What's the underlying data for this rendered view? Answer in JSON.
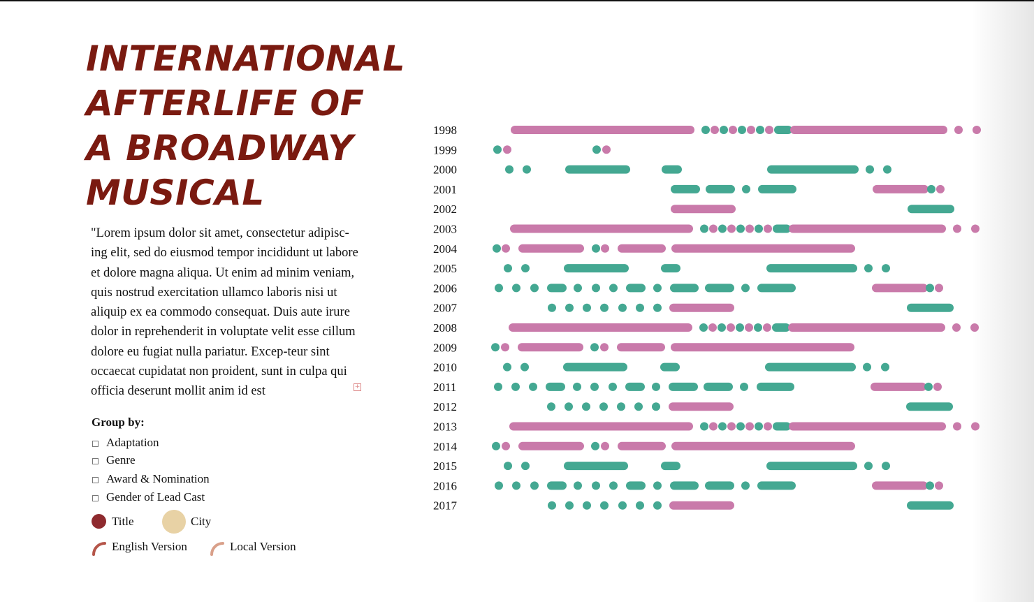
{
  "title": "INTERNATIONAL AFTERLIFE OF A BROADWAY MUSICAL",
  "description": "\"Lorem ipsum dolor sit amet, consectetur adipisc-ing elit, sed do eiusmod tempor incididunt ut labore et dolore magna aliqua. Ut enim ad minim veniam, quis nostrud exercitation ullamco laboris nisi ut aliquip ex ea commodo consequat. Duis aute irure dolor in reprehenderit in voluptate velit esse cillum dolore eu fugiat nulla pariatur. Excep-teur sint occaecat cupidatat non proident, sunt in culpa qui officia deserunt mollit anim id est",
  "expand_icon": "expand-plus-icon",
  "group_by": {
    "label": "Group by:",
    "options": [
      "Adaptation",
      "Genre",
      "Award & Nomination",
      "Gender of Lead Cast"
    ]
  },
  "legend": {
    "title": "Title",
    "city": "City",
    "english_version": "English Version",
    "local_version": "Local Version"
  },
  "colors": {
    "title_accent": "#7a1a10",
    "title_dot": "#8e2a2e",
    "city_dot": "#e8d2a5",
    "english_arc": "#b5564a",
    "local_arc": "#d9a08a",
    "pink": "#c97aaa",
    "teal": "#44a892"
  },
  "chart_data": {
    "type": "timeline",
    "years": [
      "1998",
      "1999",
      "2000",
      "2001",
      "2002",
      "2003",
      "2004",
      "2005",
      "2006",
      "2007",
      "2008",
      "2009",
      "2010",
      "2011",
      "2012",
      "2013",
      "2014",
      "2015",
      "2016",
      "2017"
    ],
    "series": [
      {
        "year": "1998",
        "segments": [
          [
            737,
            988,
            "pink"
          ],
          [
            1010,
            1010,
            "teal"
          ],
          [
            1023,
            1023,
            "pink"
          ],
          [
            1036,
            1036,
            "teal"
          ],
          [
            1049,
            1049,
            "pink"
          ],
          [
            1062,
            1062,
            "teal"
          ],
          [
            1075,
            1075,
            "pink"
          ],
          [
            1088,
            1088,
            "teal"
          ],
          [
            1101,
            1101,
            "pink"
          ],
          [
            1114,
            1128,
            "teal"
          ],
          [
            1137,
            1350,
            "pink"
          ],
          [
            1372,
            1372,
            "pink"
          ],
          [
            1398,
            1398,
            "pink"
          ]
        ]
      },
      {
        "year": "1999",
        "segments": [
          [
            712,
            712,
            "teal"
          ],
          [
            726,
            726,
            "pink"
          ],
          [
            854,
            854,
            "teal"
          ],
          [
            868,
            868,
            "pink"
          ]
        ]
      },
      {
        "year": "2000",
        "segments": [
          [
            729,
            729,
            "teal"
          ],
          [
            754,
            754,
            "teal"
          ],
          [
            815,
            896,
            "teal"
          ],
          [
            953,
            970,
            "teal"
          ],
          [
            1104,
            1223,
            "teal"
          ],
          [
            1245,
            1245,
            "teal"
          ],
          [
            1270,
            1270,
            "teal"
          ]
        ]
      },
      {
        "year": "2001",
        "segments": [
          [
            966,
            996,
            "teal"
          ],
          [
            1016,
            1046,
            "teal"
          ],
          [
            1068,
            1068,
            "teal"
          ],
          [
            1091,
            1134,
            "teal"
          ],
          [
            1255,
            1323,
            "pink"
          ],
          [
            1333,
            1333,
            "teal"
          ],
          [
            1346,
            1346,
            "pink"
          ]
        ]
      },
      {
        "year": "2002",
        "segments": [
          [
            966,
            1047,
            "pink"
          ],
          [
            1305,
            1360,
            "teal"
          ]
        ]
      },
      {
        "year": "2003",
        "segments": [
          [
            736,
            986,
            "pink"
          ],
          [
            1008,
            1008,
            "teal"
          ],
          [
            1021,
            1021,
            "pink"
          ],
          [
            1034,
            1034,
            "teal"
          ],
          [
            1047,
            1047,
            "pink"
          ],
          [
            1060,
            1060,
            "teal"
          ],
          [
            1073,
            1073,
            "pink"
          ],
          [
            1086,
            1086,
            "teal"
          ],
          [
            1099,
            1099,
            "pink"
          ],
          [
            1112,
            1126,
            "teal"
          ],
          [
            1135,
            1348,
            "pink"
          ],
          [
            1370,
            1370,
            "pink"
          ],
          [
            1396,
            1396,
            "pink"
          ]
        ]
      },
      {
        "year": "2004",
        "segments": [
          [
            711,
            711,
            "teal"
          ],
          [
            724,
            724,
            "pink"
          ],
          [
            748,
            830,
            "pink"
          ],
          [
            853,
            853,
            "teal"
          ],
          [
            866,
            866,
            "pink"
          ],
          [
            890,
            947,
            "pink"
          ],
          [
            967,
            1218,
            "pink"
          ]
        ]
      },
      {
        "year": "2005",
        "segments": [
          [
            727,
            727,
            "teal"
          ],
          [
            752,
            752,
            "teal"
          ],
          [
            813,
            894,
            "teal"
          ],
          [
            952,
            968,
            "teal"
          ],
          [
            1103,
            1221,
            "teal"
          ],
          [
            1243,
            1243,
            "teal"
          ],
          [
            1268,
            1268,
            "teal"
          ]
        ]
      },
      {
        "year": "2006",
        "segments": [
          [
            714,
            714,
            "teal"
          ],
          [
            739,
            739,
            "teal"
          ],
          [
            765,
            765,
            "teal"
          ],
          [
            789,
            805,
            "teal"
          ],
          [
            827,
            827,
            "teal"
          ],
          [
            853,
            853,
            "teal"
          ],
          [
            878,
            878,
            "teal"
          ],
          [
            902,
            918,
            "teal"
          ],
          [
            941,
            941,
            "teal"
          ],
          [
            965,
            994,
            "teal"
          ],
          [
            1015,
            1045,
            "teal"
          ],
          [
            1067,
            1067,
            "teal"
          ],
          [
            1090,
            1133,
            "teal"
          ],
          [
            1254,
            1322,
            "pink"
          ],
          [
            1331,
            1331,
            "teal"
          ],
          [
            1344,
            1344,
            "pink"
          ]
        ]
      },
      {
        "year": "2007",
        "segments": [
          [
            790,
            790,
            "teal"
          ],
          [
            815,
            815,
            "teal"
          ],
          [
            840,
            840,
            "teal"
          ],
          [
            865,
            865,
            "teal"
          ],
          [
            891,
            891,
            "teal"
          ],
          [
            916,
            916,
            "teal"
          ],
          [
            941,
            941,
            "teal"
          ],
          [
            964,
            1045,
            "pink"
          ],
          [
            1304,
            1359,
            "teal"
          ]
        ]
      },
      {
        "year": "2008",
        "segments": [
          [
            734,
            985,
            "pink"
          ],
          [
            1007,
            1007,
            "teal"
          ],
          [
            1020,
            1020,
            "pink"
          ],
          [
            1033,
            1033,
            "teal"
          ],
          [
            1046,
            1046,
            "pink"
          ],
          [
            1059,
            1059,
            "teal"
          ],
          [
            1072,
            1072,
            "pink"
          ],
          [
            1085,
            1085,
            "teal"
          ],
          [
            1098,
            1098,
            "pink"
          ],
          [
            1111,
            1125,
            "teal"
          ],
          [
            1134,
            1347,
            "pink"
          ],
          [
            1369,
            1369,
            "pink"
          ],
          [
            1395,
            1395,
            "pink"
          ]
        ]
      },
      {
        "year": "2009",
        "segments": [
          [
            709,
            709,
            "teal"
          ],
          [
            723,
            723,
            "pink"
          ],
          [
            747,
            829,
            "pink"
          ],
          [
            851,
            851,
            "teal"
          ],
          [
            865,
            865,
            "pink"
          ],
          [
            889,
            946,
            "pink"
          ],
          [
            966,
            1217,
            "pink"
          ]
        ]
      },
      {
        "year": "2010",
        "segments": [
          [
            726,
            726,
            "teal"
          ],
          [
            751,
            751,
            "teal"
          ],
          [
            812,
            892,
            "teal"
          ],
          [
            951,
            967,
            "teal"
          ],
          [
            1101,
            1219,
            "teal"
          ],
          [
            1241,
            1241,
            "teal"
          ],
          [
            1267,
            1267,
            "teal"
          ]
        ]
      },
      {
        "year": "2011",
        "segments": [
          [
            713,
            713,
            "teal"
          ],
          [
            738,
            738,
            "teal"
          ],
          [
            763,
            763,
            "teal"
          ],
          [
            787,
            803,
            "teal"
          ],
          [
            826,
            826,
            "teal"
          ],
          [
            851,
            851,
            "teal"
          ],
          [
            877,
            877,
            "teal"
          ],
          [
            901,
            917,
            "teal"
          ],
          [
            939,
            939,
            "teal"
          ],
          [
            963,
            993,
            "teal"
          ],
          [
            1013,
            1043,
            "teal"
          ],
          [
            1065,
            1065,
            "teal"
          ],
          [
            1089,
            1131,
            "teal"
          ],
          [
            1252,
            1320,
            "pink"
          ],
          [
            1329,
            1329,
            "teal"
          ],
          [
            1342,
            1342,
            "pink"
          ]
        ]
      },
      {
        "year": "2012",
        "segments": [
          [
            789,
            789,
            "teal"
          ],
          [
            814,
            814,
            "teal"
          ],
          [
            839,
            839,
            "teal"
          ],
          [
            864,
            864,
            "teal"
          ],
          [
            889,
            889,
            "teal"
          ],
          [
            914,
            914,
            "teal"
          ],
          [
            939,
            939,
            "teal"
          ],
          [
            963,
            1044,
            "pink"
          ],
          [
            1303,
            1358,
            "teal"
          ]
        ]
      },
      {
        "year": "2013",
        "segments": [
          [
            735,
            986,
            "pink"
          ],
          [
            1008,
            1008,
            "teal"
          ],
          [
            1021,
            1021,
            "pink"
          ],
          [
            1034,
            1034,
            "teal"
          ],
          [
            1047,
            1047,
            "pink"
          ],
          [
            1060,
            1060,
            "teal"
          ],
          [
            1073,
            1073,
            "pink"
          ],
          [
            1086,
            1086,
            "teal"
          ],
          [
            1099,
            1099,
            "pink"
          ],
          [
            1112,
            1126,
            "teal"
          ],
          [
            1135,
            1348,
            "pink"
          ],
          [
            1370,
            1370,
            "pink"
          ],
          [
            1396,
            1396,
            "pink"
          ]
        ]
      },
      {
        "year": "2014",
        "segments": [
          [
            710,
            710,
            "teal"
          ],
          [
            724,
            724,
            "pink"
          ],
          [
            748,
            830,
            "pink"
          ],
          [
            852,
            852,
            "teal"
          ],
          [
            866,
            866,
            "pink"
          ],
          [
            890,
            947,
            "pink"
          ],
          [
            967,
            1218,
            "pink"
          ]
        ]
      },
      {
        "year": "2015",
        "segments": [
          [
            727,
            727,
            "teal"
          ],
          [
            752,
            752,
            "teal"
          ],
          [
            813,
            893,
            "teal"
          ],
          [
            952,
            968,
            "teal"
          ],
          [
            1103,
            1221,
            "teal"
          ],
          [
            1243,
            1243,
            "teal"
          ],
          [
            1268,
            1268,
            "teal"
          ]
        ]
      },
      {
        "year": "2016",
        "segments": [
          [
            714,
            714,
            "teal"
          ],
          [
            739,
            739,
            "teal"
          ],
          [
            765,
            765,
            "teal"
          ],
          [
            789,
            805,
            "teal"
          ],
          [
            827,
            827,
            "teal"
          ],
          [
            853,
            853,
            "teal"
          ],
          [
            878,
            878,
            "teal"
          ],
          [
            902,
            918,
            "teal"
          ],
          [
            941,
            941,
            "teal"
          ],
          [
            965,
            994,
            "teal"
          ],
          [
            1015,
            1045,
            "teal"
          ],
          [
            1067,
            1067,
            "teal"
          ],
          [
            1090,
            1133,
            "teal"
          ],
          [
            1254,
            1322,
            "pink"
          ],
          [
            1331,
            1331,
            "teal"
          ],
          [
            1344,
            1344,
            "pink"
          ]
        ]
      },
      {
        "year": "2017",
        "segments": [
          [
            790,
            790,
            "teal"
          ],
          [
            815,
            815,
            "teal"
          ],
          [
            840,
            840,
            "teal"
          ],
          [
            865,
            865,
            "teal"
          ],
          [
            891,
            891,
            "teal"
          ],
          [
            916,
            916,
            "teal"
          ],
          [
            941,
            941,
            "teal"
          ],
          [
            964,
            1045,
            "pink"
          ],
          [
            1304,
            1359,
            "teal"
          ]
        ]
      }
    ],
    "grid": false,
    "legend": "none"
  }
}
